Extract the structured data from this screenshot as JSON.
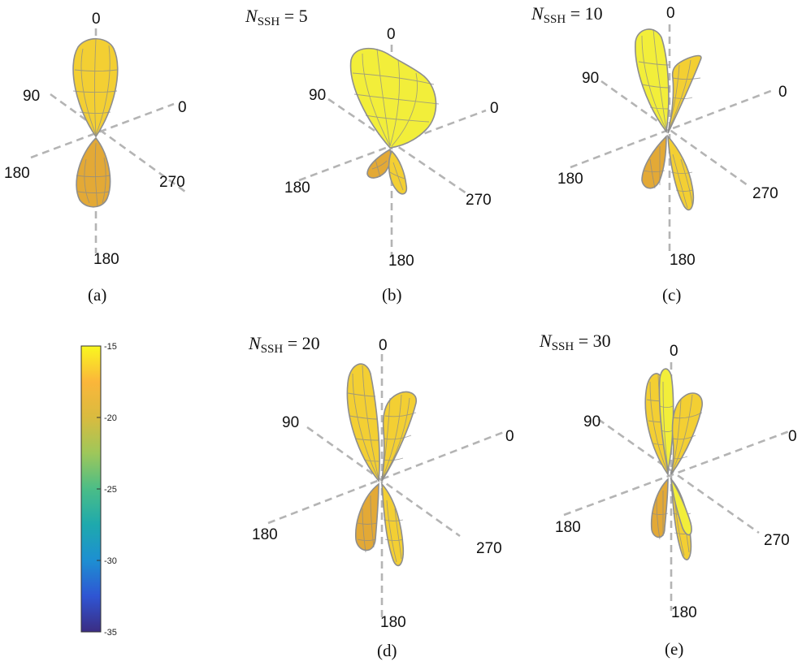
{
  "colorbar": {
    "ticks": [
      "-15",
      "-20",
      "-25",
      "-30",
      "-35"
    ],
    "range": [
      -35,
      -15
    ],
    "colormap": [
      "#3b2d83",
      "#2f55d3",
      "#1d8fd2",
      "#1ea9ad",
      "#4bbd87",
      "#9ec75a",
      "#d9bb3f",
      "#fbb63a",
      "#f9f81f"
    ]
  },
  "lobe_colors": {
    "light": "#f2ee3a",
    "mid": "#f3cf33",
    "dark": "#e3a936"
  },
  "panels": [
    {
      "caption": "(a)",
      "title": {
        "symbol": "",
        "subscript": "",
        "rest": ""
      },
      "axis_labels": {
        "top": "0",
        "right": "0",
        "left": "90",
        "lower_left": "180",
        "lower_right": "270",
        "bottom": "180"
      }
    },
    {
      "caption": "(b)",
      "title": {
        "symbol": "N",
        "subscript": "SSH",
        "rest": " = 5"
      },
      "axis_labels": {
        "top": "0",
        "right": "0",
        "left": "90",
        "lower_left": "180",
        "lower_right": "270",
        "bottom": "180"
      }
    },
    {
      "caption": "(c)",
      "title": {
        "symbol": "N",
        "subscript": "SSH",
        "rest": " = 10"
      },
      "axis_labels": {
        "top": "0",
        "right": "0",
        "left": "90",
        "lower_left": "180",
        "lower_right": "270",
        "bottom": "180"
      }
    },
    {
      "caption": "(d)",
      "title": {
        "symbol": "N",
        "subscript": "SSH",
        "rest": " = 20"
      },
      "axis_labels": {
        "top": "0",
        "right": "0",
        "left": "90",
        "lower_left": "180",
        "lower_right": "270",
        "bottom": "180"
      }
    },
    {
      "caption": "(e)",
      "title": {
        "symbol": "N",
        "subscript": "SSH",
        "rest": " = 30"
      },
      "axis_labels": {
        "top": "0",
        "right": "0",
        "left": "90",
        "lower_left": "180",
        "lower_right": "270",
        "bottom": "180"
      }
    }
  ]
}
